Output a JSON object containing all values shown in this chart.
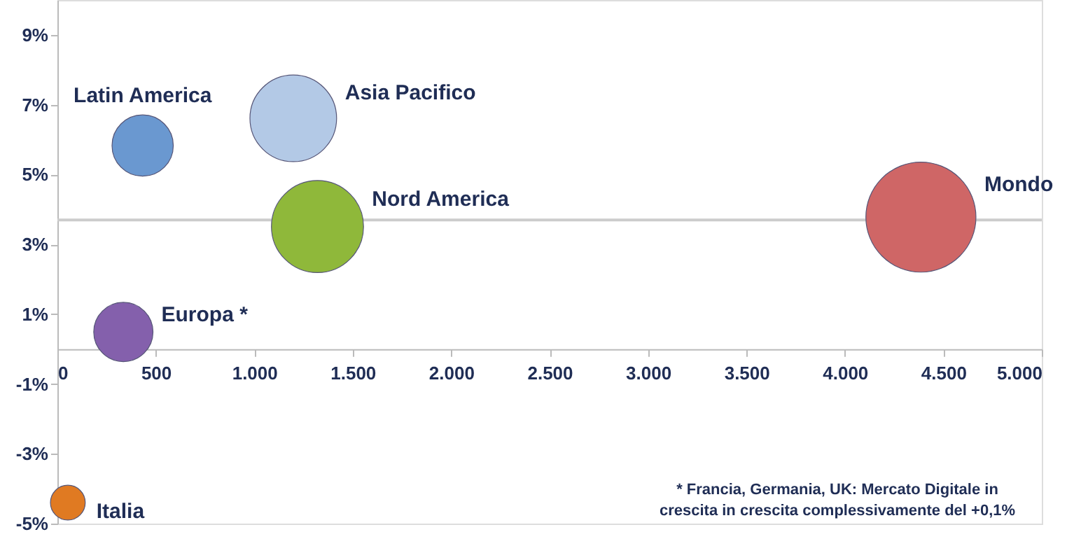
{
  "chart_data": {
    "type": "bubble",
    "series": [
      {
        "name": "Latin America",
        "color": "#6a98d0",
        "x": [
          433
        ],
        "values": [
          5.83
        ],
        "sizes": [
          0.31
        ]
      },
      {
        "name": "Asia Pacifico",
        "color": "#b3c9e6",
        "x": [
          1198
        ],
        "values": [
          6.61
        ],
        "sizes": [
          0.62
        ]
      },
      {
        "name": "Nord America",
        "color": "#8fb83a",
        "x": [
          1321
        ],
        "values": [
          3.51
        ],
        "sizes": [
          0.7
        ]
      },
      {
        "name": "Mondo",
        "color": "#cf6666",
        "x": [
          4386
        ],
        "values": [
          3.78
        ],
        "sizes": [
          1
        ]
      },
      {
        "name": "Europa *",
        "color": "#8460ac",
        "x": [
          335
        ],
        "values": [
          0.49
        ],
        "sizes": [
          0.29
        ]
      },
      {
        "name": "Italia",
        "color": "#e07a22",
        "x": [
          53
        ],
        "values": [
          -4.4
        ],
        "sizes": [
          0.1
        ]
      }
    ],
    "xlim": [
      0,
      5000
    ],
    "xticks": [
      0,
      500,
      {
        "value": 1000,
        "label": "1.000"
      },
      {
        "value": 1500,
        "label": "1.500"
      },
      {
        "value": 2000,
        "label": "2.000"
      },
      {
        "value": 2500,
        "label": "2.500"
      },
      {
        "value": 3000,
        "label": "3.000"
      },
      {
        "value": 3500,
        "label": "3.500"
      },
      {
        "value": 4000,
        "label": "4.000"
      },
      {
        "value": 4500,
        "label": "4.500"
      },
      {
        "value": 5000,
        "label": "5.000"
      }
    ],
    "ylim": [
      -5,
      10
    ],
    "yticks": [
      {
        "value": -5,
        "label": "-5%"
      },
      {
        "value": -3,
        "label": "-3%"
      },
      {
        "value": -1,
        "label": "-1%"
      },
      {
        "value": 1,
        "label": "1%"
      },
      {
        "value": 3,
        "label": "3%"
      },
      {
        "value": 5,
        "label": "5%"
      },
      {
        "value": 7,
        "label": "7%"
      },
      {
        "value": 9,
        "label": "9%"
      }
    ],
    "ref_lines": [
      {
        "axis": "y",
        "value": 3.7,
        "color": "#cccccc"
      }
    ],
    "annotations": [
      "* Francia, Germania, UK: Mercato Digitale in crescita in crescita complessivamente del +0,1%"
    ],
    "grid": false,
    "marker": "circle"
  }
}
